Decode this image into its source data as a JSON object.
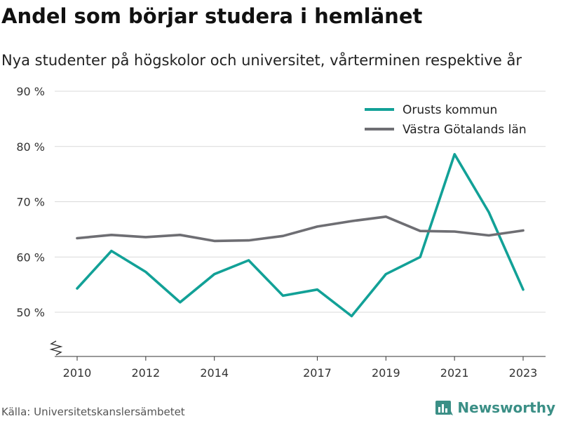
{
  "title": "Andel som börjar studera i hemlänet",
  "subtitle": "Nya studenter på högskolor och universitet, vårterminen respektive år",
  "source": "Källa: Universitetskanslersämbetet",
  "brand": "Newsworthy",
  "colors": {
    "orust": "#12a197",
    "vastra": "#6e6e73",
    "grid": "#d9d9d9",
    "brand": "#3b8f86"
  },
  "chart_data": {
    "type": "line",
    "ylim": [
      42,
      90
    ],
    "yticks": [
      50,
      60,
      70,
      80,
      90
    ],
    "ytick_labels": [
      "50 %",
      "60 %",
      "70 %",
      "80 %",
      "90 %"
    ],
    "xlim": [
      2010,
      2023
    ],
    "xticks": [
      2010,
      2012,
      2014,
      2017,
      2019,
      2021,
      2023
    ],
    "xtick_labels": [
      "2010",
      "2012",
      "2014",
      "2017",
      "2019",
      "2021",
      "2023"
    ],
    "legend_position": "top-right",
    "grid": true,
    "series": [
      {
        "name": "Orusts kommun",
        "color_key": "orust",
        "points": [
          [
            2010,
            54.3
          ],
          [
            2011,
            61.1
          ],
          [
            2012,
            57.3
          ],
          [
            2013,
            51.8
          ],
          [
            2014,
            56.9
          ],
          [
            2015,
            59.4
          ],
          [
            2016,
            53.0
          ],
          [
            2017,
            54.1
          ],
          [
            2018,
            49.3
          ],
          [
            2019,
            56.9
          ],
          [
            2020,
            60.0
          ],
          [
            2021,
            78.6
          ],
          [
            2022,
            68.1
          ],
          [
            2023,
            54.1
          ]
        ]
      },
      {
        "name": "Västra Götalands län",
        "color_key": "vastra",
        "points": [
          [
            2010,
            63.4
          ],
          [
            2011,
            64.0
          ],
          [
            2012,
            63.6
          ],
          [
            2013,
            64.0
          ],
          [
            2014,
            62.9
          ],
          [
            2015,
            63.0
          ],
          [
            2016,
            63.8
          ],
          [
            2017,
            65.5
          ],
          [
            2018,
            66.5
          ],
          [
            2019,
            67.3
          ],
          [
            2020,
            64.7
          ],
          [
            2021,
            64.6
          ],
          [
            2022,
            63.9
          ],
          [
            2023,
            64.8
          ]
        ]
      }
    ]
  }
}
